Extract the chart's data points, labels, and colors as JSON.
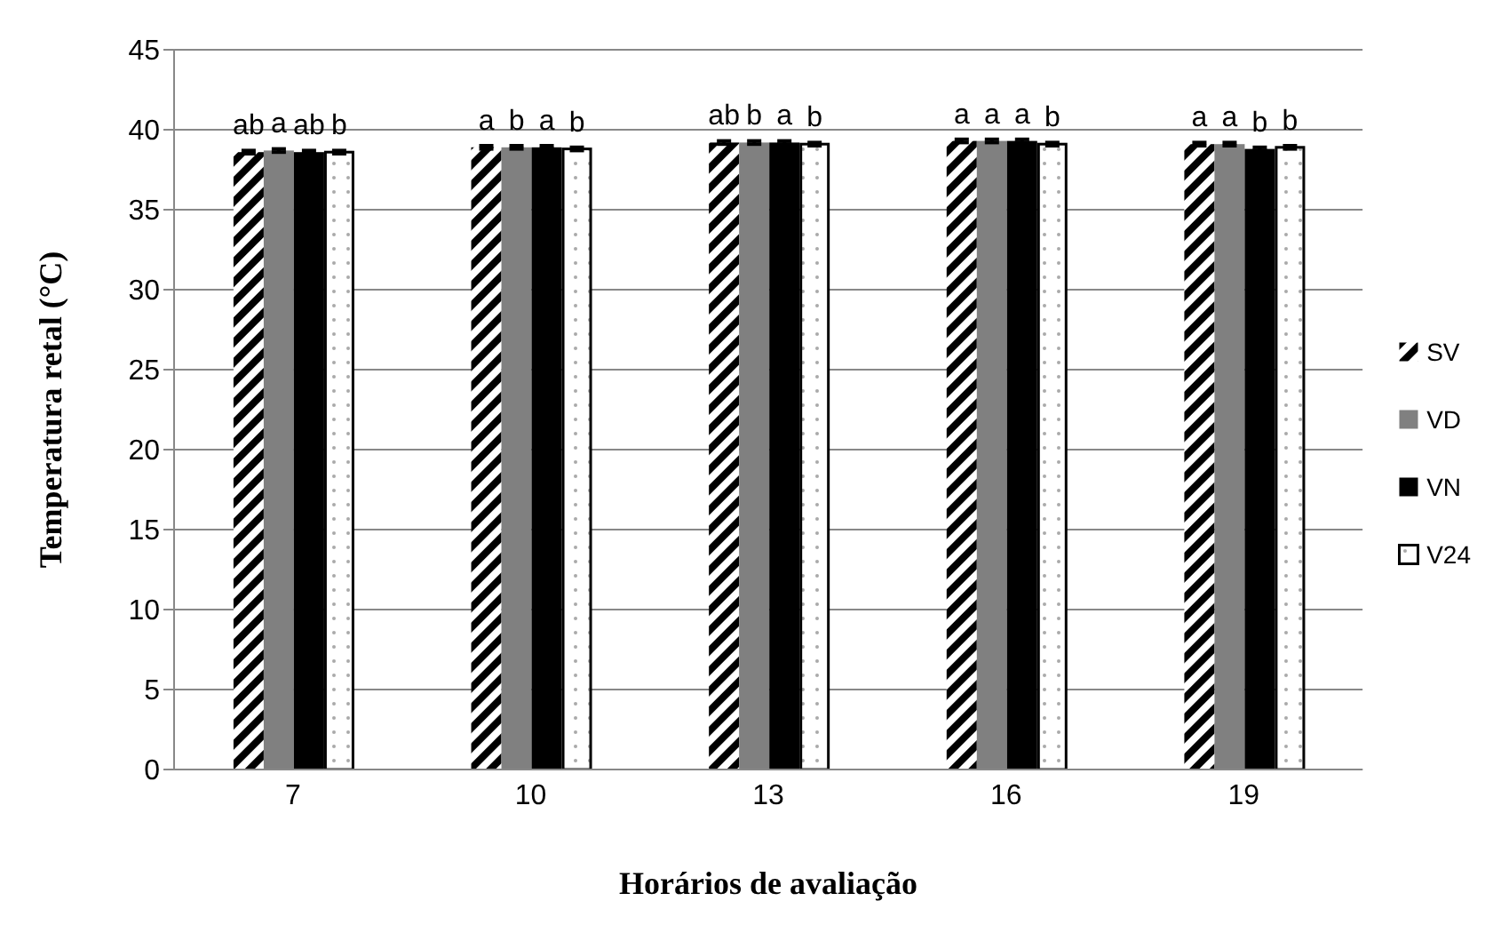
{
  "chart_data": {
    "type": "bar",
    "xlabel": "Horários de avaliação",
    "ylabel": "Temperatura retal (°C)",
    "categories": [
      "7",
      "10",
      "13",
      "16",
      "19"
    ],
    "series": [
      {
        "name": "SV",
        "color": "#000000",
        "values": [
          38.6,
          38.9,
          39.2,
          39.3,
          39.1
        ],
        "errors": [
          0.1,
          0.1,
          0.1,
          0.1,
          0.1
        ],
        "value_labels": [
          "ab",
          "a",
          "ab",
          "a",
          "a"
        ]
      },
      {
        "name": "VD",
        "color": "#808080",
        "values": [
          38.7,
          38.9,
          39.2,
          39.3,
          39.1
        ],
        "errors": [
          0.1,
          0.1,
          0.1,
          0.1,
          0.1
        ],
        "value_labels": [
          "a",
          "b",
          "b",
          "a",
          "a"
        ]
      },
      {
        "name": "VN",
        "color": "#000000",
        "values": [
          38.6,
          38.9,
          39.2,
          39.3,
          38.8
        ],
        "errors": [
          0.1,
          0.1,
          0.1,
          0.1,
          0.1
        ],
        "value_labels": [
          "ab",
          "a",
          "a",
          "a",
          "b"
        ]
      },
      {
        "name": "V24",
        "color": "#000000",
        "values": [
          38.6,
          38.8,
          39.1,
          39.1,
          38.9
        ],
        "errors": [
          0.1,
          0.1,
          0.1,
          0.1,
          0.1
        ],
        "value_labels": [
          "b",
          "b",
          "b",
          "b",
          "b"
        ]
      }
    ],
    "ylim": [
      0,
      45
    ],
    "yticks": [
      0,
      5,
      10,
      15,
      20,
      25,
      30,
      35,
      40,
      45
    ],
    "grid": "y",
    "legend": "right"
  }
}
